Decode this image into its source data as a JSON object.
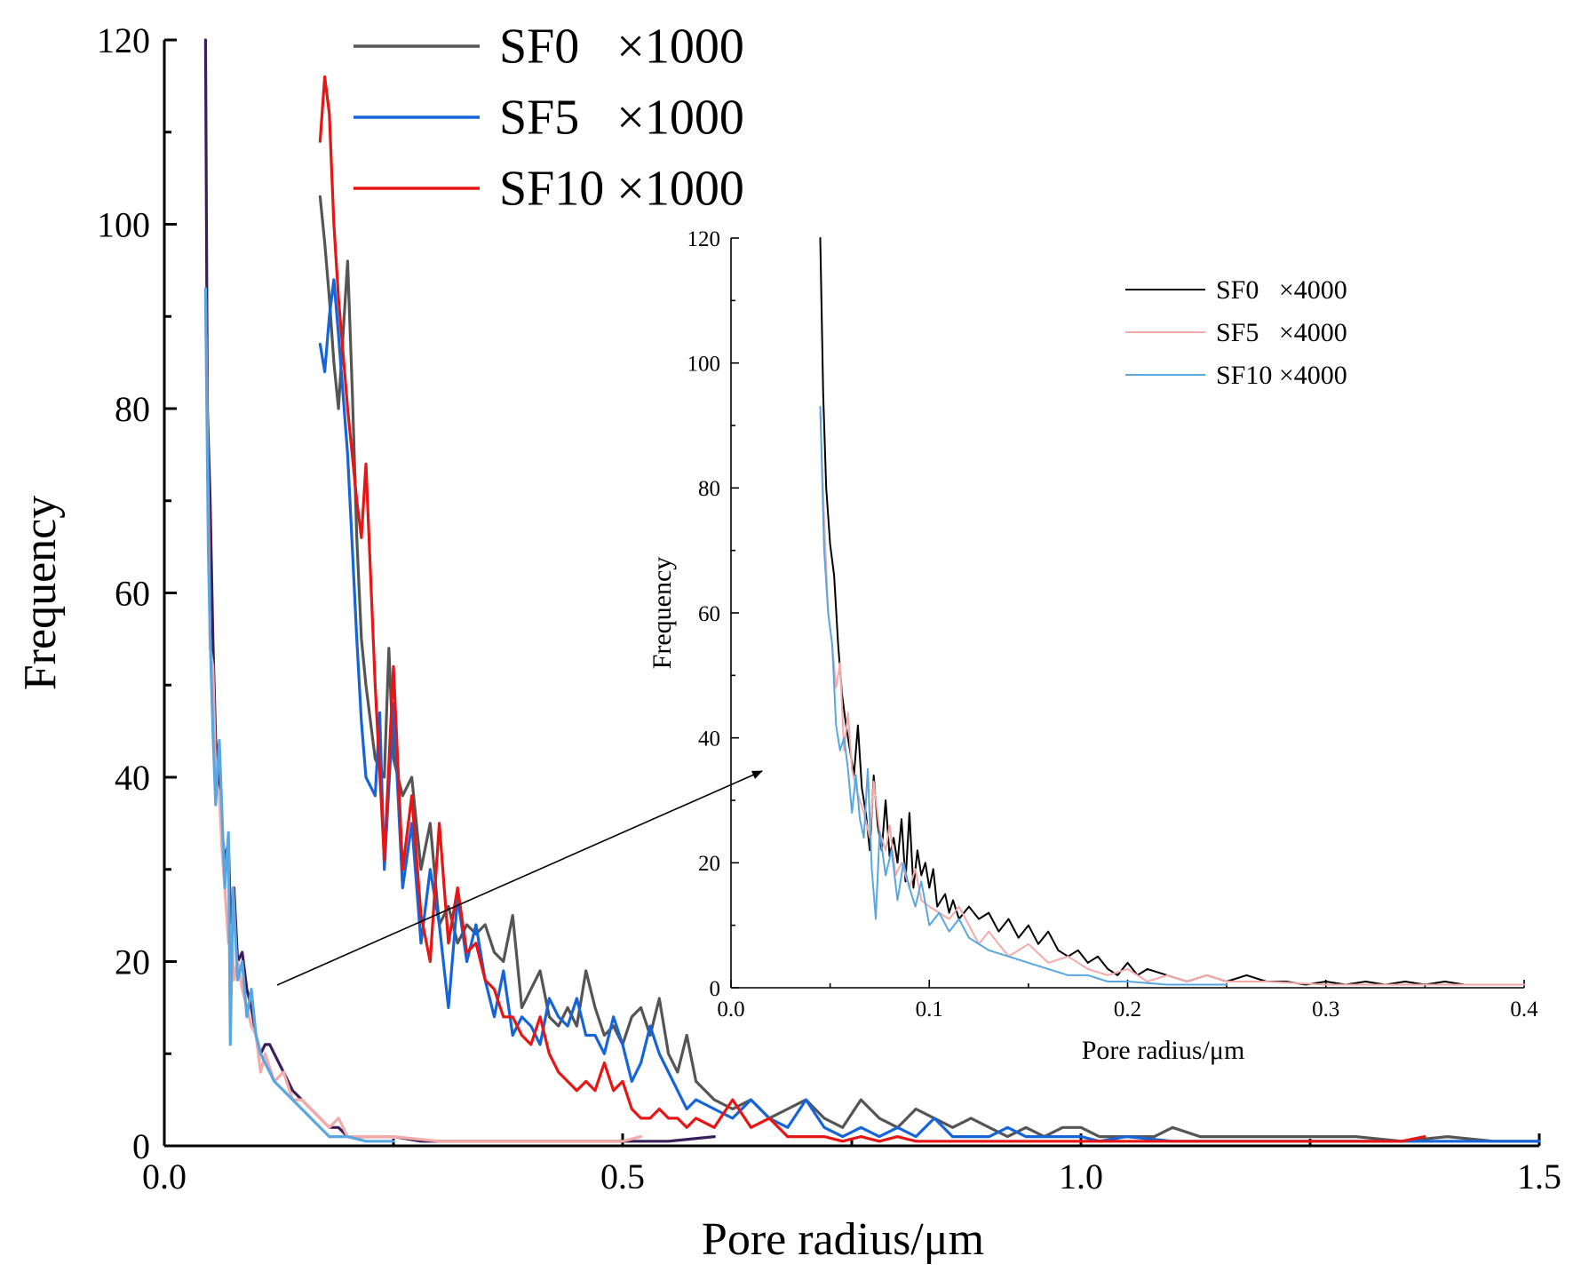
{
  "chart_data": [
    {
      "id": "main",
      "type": "line",
      "xlabel": "Pore radius/μm",
      "ylabel": "Frequency",
      "xlim": [
        0,
        1.5
      ],
      "ylim": [
        0,
        120
      ],
      "xticks": [
        "0.0",
        "0.5",
        "1.0",
        "1.5"
      ],
      "yticks": [
        "0",
        "20",
        "40",
        "60",
        "80",
        "100",
        "120"
      ],
      "legend_position": "top-center",
      "series": [
        {
          "name": "SF0   ×1000",
          "color": "#555555",
          "x": [
            0.17,
            0.175,
            0.18,
            0.185,
            0.19,
            0.195,
            0.2,
            0.205,
            0.21,
            0.215,
            0.22,
            0.23,
            0.24,
            0.245,
            0.25,
            0.26,
            0.27,
            0.28,
            0.29,
            0.3,
            0.31,
            0.32,
            0.33,
            0.34,
            0.35,
            0.36,
            0.37,
            0.38,
            0.39,
            0.4,
            0.41,
            0.42,
            0.43,
            0.44,
            0.45,
            0.46,
            0.47,
            0.48,
            0.49,
            0.5,
            0.51,
            0.52,
            0.53,
            0.54,
            0.55,
            0.56,
            0.57,
            0.58,
            0.6,
            0.62,
            0.64,
            0.66,
            0.68,
            0.7,
            0.72,
            0.74,
            0.76,
            0.78,
            0.8,
            0.82,
            0.84,
            0.86,
            0.88,
            0.9,
            0.92,
            0.94,
            0.96,
            0.98,
            1.0,
            1.02,
            1.05,
            1.08,
            1.1,
            1.13,
            1.16,
            1.2,
            1.25,
            1.3,
            1.35,
            1.4,
            1.45,
            1.5
          ],
          "y": [
            103,
            98,
            92,
            85,
            80,
            88,
            96,
            82,
            66,
            55,
            50,
            42,
            40,
            54,
            42,
            38,
            40,
            30,
            35,
            24,
            26,
            22,
            24,
            23,
            24,
            21,
            20,
            25,
            15,
            17,
            19,
            14,
            13,
            15,
            13,
            19,
            15,
            12,
            13,
            11,
            14,
            15,
            12,
            16,
            10,
            8,
            12,
            7,
            5,
            4,
            5,
            3,
            4,
            5,
            3,
            2,
            5,
            3,
            2,
            4,
            3,
            2,
            3,
            2,
            1,
            2,
            1,
            2,
            2,
            1,
            1,
            1,
            2,
            1,
            1,
            1,
            1,
            1,
            0.5,
            1,
            0.5,
            0.5
          ]
        },
        {
          "name": "SF5   ×1000",
          "color": "#1565d8",
          "x": [
            0.17,
            0.175,
            0.18,
            0.185,
            0.19,
            0.2,
            0.205,
            0.21,
            0.215,
            0.22,
            0.23,
            0.235,
            0.24,
            0.25,
            0.26,
            0.27,
            0.28,
            0.29,
            0.3,
            0.31,
            0.32,
            0.33,
            0.34,
            0.35,
            0.36,
            0.37,
            0.38,
            0.39,
            0.4,
            0.41,
            0.42,
            0.43,
            0.44,
            0.45,
            0.46,
            0.47,
            0.48,
            0.49,
            0.5,
            0.51,
            0.52,
            0.53,
            0.54,
            0.55,
            0.56,
            0.57,
            0.58,
            0.6,
            0.62,
            0.64,
            0.66,
            0.68,
            0.7,
            0.72,
            0.74,
            0.76,
            0.78,
            0.8,
            0.82,
            0.84,
            0.86,
            0.88,
            0.9,
            0.92,
            0.94,
            0.96,
            0.98,
            1.0,
            1.02,
            1.05,
            1.1,
            1.15,
            1.2,
            1.25,
            1.3,
            1.35,
            1.4,
            1.45,
            1.5
          ],
          "y": [
            87,
            84,
            90,
            94,
            88,
            75,
            65,
            55,
            46,
            40,
            38,
            47,
            30,
            48,
            28,
            35,
            22,
            30,
            24,
            15,
            27,
            20,
            24,
            18,
            14,
            19,
            12,
            14,
            13,
            11,
            16,
            14,
            13,
            16,
            12,
            12,
            10,
            14,
            11,
            7,
            9,
            13,
            10,
            8,
            6,
            4,
            5,
            4,
            3,
            5,
            3,
            2,
            5,
            2,
            1,
            2,
            1,
            2,
            1,
            3,
            1,
            1,
            1,
            2,
            1,
            1,
            1,
            1,
            0.5,
            1,
            0.5,
            0.5,
            0.5,
            0.5,
            0.5,
            0.5,
            0.5,
            0.5,
            0.5
          ]
        },
        {
          "name": "SF10 ×1000",
          "color": "#e81515",
          "x": [
            0.17,
            0.175,
            0.18,
            0.185,
            0.19,
            0.2,
            0.21,
            0.215,
            0.22,
            0.23,
            0.24,
            0.25,
            0.26,
            0.27,
            0.28,
            0.29,
            0.3,
            0.31,
            0.32,
            0.33,
            0.34,
            0.35,
            0.36,
            0.37,
            0.38,
            0.39,
            0.4,
            0.41,
            0.42,
            0.43,
            0.44,
            0.45,
            0.46,
            0.47,
            0.48,
            0.49,
            0.5,
            0.51,
            0.52,
            0.53,
            0.54,
            0.55,
            0.56,
            0.57,
            0.58,
            0.6,
            0.62,
            0.64,
            0.66,
            0.68,
            0.7,
            0.72,
            0.74,
            0.76,
            0.78,
            0.8,
            0.82,
            0.84,
            0.86,
            0.88,
            0.9,
            0.95,
            1.0,
            1.05,
            1.1,
            1.15,
            1.2,
            1.25,
            1.3,
            1.35,
            1.375
          ],
          "y": [
            109,
            116,
            112,
            100,
            92,
            80,
            70,
            66,
            74,
            50,
            31,
            52,
            30,
            38,
            25,
            20,
            35,
            22,
            28,
            21,
            22,
            18,
            17,
            14,
            14,
            12,
            11,
            14,
            10,
            8,
            7,
            6,
            7,
            6,
            9,
            6,
            7,
            4,
            3,
            3,
            4,
            3,
            3,
            2,
            3,
            2,
            5,
            2,
            3,
            1,
            1,
            1,
            0.5,
            1,
            0.5,
            1,
            0.5,
            0.5,
            0.5,
            0.5,
            0.5,
            0.5,
            0.5,
            0.5,
            0.5,
            0.5,
            0.5,
            0.5,
            0.5,
            0.5,
            1
          ]
        },
        {
          "name": "SF0 ×4000",
          "color": "#3a1f5d",
          "legend": false,
          "x": [
            0.045,
            0.047,
            0.05,
            0.053,
            0.056,
            0.06,
            0.063,
            0.066,
            0.07,
            0.073,
            0.076,
            0.08,
            0.085,
            0.09,
            0.095,
            0.1,
            0.105,
            0.11,
            0.115,
            0.12,
            0.13,
            0.14,
            0.15,
            0.16,
            0.17,
            0.18,
            0.19,
            0.2,
            0.22,
            0.25,
            0.28,
            0.3,
            0.35,
            0.4,
            0.45,
            0.5,
            0.55,
            0.6
          ],
          "y": [
            120,
            80,
            70,
            55,
            44,
            40,
            34,
            31,
            33,
            22,
            28,
            20,
            21,
            17,
            15,
            12,
            10,
            11,
            11,
            10,
            8,
            6,
            5,
            4,
            3,
            2,
            2,
            1,
            1,
            1,
            0.5,
            0.5,
            0.5,
            0.5,
            0.5,
            0.5,
            0.5,
            1
          ]
        },
        {
          "name": "SF5 ×4000",
          "color": "#f4aaa8",
          "legend": false,
          "x": [
            0.045,
            0.048,
            0.05,
            0.053,
            0.056,
            0.06,
            0.063,
            0.066,
            0.07,
            0.073,
            0.076,
            0.08,
            0.085,
            0.09,
            0.095,
            0.1,
            0.105,
            0.11,
            0.12,
            0.13,
            0.14,
            0.15,
            0.16,
            0.17,
            0.18,
            0.19,
            0.2,
            0.22,
            0.25,
            0.3,
            0.35,
            0.4,
            0.45,
            0.5,
            0.52
          ],
          "y": [
            92,
            70,
            54,
            52,
            40,
            38,
            32,
            28,
            22,
            24,
            18,
            20,
            17,
            15,
            13,
            12,
            8,
            10,
            7,
            8,
            5,
            5,
            4,
            3,
            2,
            3,
            1,
            1,
            1,
            0.5,
            0.5,
            0.5,
            0.5,
            0.5,
            1
          ]
        },
        {
          "name": "SF10 ×4000",
          "color": "#5aa6e0",
          "legend": false,
          "x": [
            0.045,
            0.048,
            0.05,
            0.053,
            0.056,
            0.06,
            0.063,
            0.066,
            0.07,
            0.072,
            0.075,
            0.08,
            0.085,
            0.09,
            0.095,
            0.1,
            0.105,
            0.11,
            0.12,
            0.13,
            0.14,
            0.15,
            0.16,
            0.17,
            0.18,
            0.19,
            0.2,
            0.22,
            0.25
          ],
          "y": [
            93,
            65,
            55,
            45,
            37,
            44,
            36,
            28,
            34,
            11,
            28,
            18,
            20,
            14,
            17,
            12,
            10,
            9,
            7,
            6,
            5,
            4,
            3,
            2,
            1,
            1,
            1,
            0.5,
            0.5
          ]
        }
      ]
    },
    {
      "id": "inset",
      "type": "line",
      "xlabel": "Pore radius/μm",
      "ylabel": "Frequency",
      "xlim": [
        0,
        0.4
      ],
      "ylim": [
        0,
        120
      ],
      "xticks": [
        "0.0",
        "0.1",
        "0.2",
        "0.3",
        "0.4"
      ],
      "yticks": [
        "0",
        "20",
        "40",
        "60",
        "80",
        "100",
        "120"
      ],
      "legend_position": "top-right",
      "series": [
        {
          "name": "SF0   ×4000",
          "color": "#000000",
          "x": [
            0.045,
            0.0465,
            0.048,
            0.05,
            0.052,
            0.054,
            0.056,
            0.058,
            0.06,
            0.062,
            0.064,
            0.066,
            0.068,
            0.07,
            0.072,
            0.074,
            0.076,
            0.078,
            0.08,
            0.082,
            0.084,
            0.086,
            0.088,
            0.09,
            0.092,
            0.094,
            0.096,
            0.098,
            0.1,
            0.102,
            0.104,
            0.106,
            0.108,
            0.11,
            0.112,
            0.115,
            0.12,
            0.125,
            0.13,
            0.135,
            0.14,
            0.145,
            0.15,
            0.155,
            0.16,
            0.165,
            0.17,
            0.175,
            0.18,
            0.185,
            0.19,
            0.195,
            0.2,
            0.205,
            0.21,
            0.22,
            0.23,
            0.24,
            0.25,
            0.26,
            0.27,
            0.28,
            0.29,
            0.3,
            0.31,
            0.32,
            0.33,
            0.34,
            0.35,
            0.36,
            0.37,
            0.38,
            0.39,
            0.4
          ],
          "y": [
            120,
            95,
            80,
            71,
            66,
            55,
            47,
            42,
            38,
            34,
            42,
            32,
            28,
            22,
            34,
            26,
            22,
            30,
            21,
            24,
            20,
            27,
            17,
            28,
            16,
            22,
            18,
            20,
            16,
            19,
            13,
            14,
            15,
            12,
            14,
            11,
            13,
            11,
            12,
            9,
            11,
            8,
            10,
            7,
            9,
            6,
            5,
            6,
            4,
            5,
            3,
            2,
            4,
            2,
            3,
            2,
            1,
            2,
            1,
            2,
            1,
            1,
            0.5,
            1,
            0.5,
            1,
            0.5,
            1,
            0.5,
            1,
            0.5,
            0.5,
            0.5,
            0.5
          ]
        },
        {
          "name": "SF5   ×4000",
          "color": "#f4aaa8",
          "x": [
            0.045,
            0.047,
            0.049,
            0.051,
            0.053,
            0.055,
            0.057,
            0.059,
            0.061,
            0.063,
            0.065,
            0.067,
            0.07,
            0.072,
            0.075,
            0.078,
            0.08,
            0.083,
            0.086,
            0.09,
            0.093,
            0.096,
            0.1,
            0.105,
            0.11,
            0.115,
            0.12,
            0.125,
            0.13,
            0.14,
            0.15,
            0.16,
            0.17,
            0.18,
            0.19,
            0.2,
            0.21,
            0.22,
            0.23,
            0.24,
            0.25,
            0.27,
            0.3,
            0.35,
            0.4
          ],
          "y": [
            92,
            75,
            60,
            55,
            48,
            52,
            38,
            44,
            35,
            32,
            30,
            28,
            24,
            33,
            25,
            22,
            26,
            18,
            20,
            16,
            19,
            14,
            13,
            12,
            11,
            13,
            10,
            7,
            9,
            5,
            7,
            4,
            5,
            3,
            2,
            3,
            1,
            2,
            1,
            2,
            1,
            1,
            0.5,
            0.5,
            0.5
          ]
        },
        {
          "name": "SF10 ×4000",
          "color": "#5aa6e0",
          "x": [
            0.045,
            0.047,
            0.049,
            0.051,
            0.053,
            0.055,
            0.057,
            0.059,
            0.061,
            0.063,
            0.065,
            0.067,
            0.069,
            0.071,
            0.073,
            0.075,
            0.078,
            0.081,
            0.084,
            0.087,
            0.09,
            0.093,
            0.096,
            0.1,
            0.105,
            0.11,
            0.115,
            0.12,
            0.125,
            0.13,
            0.14,
            0.15,
            0.16,
            0.17,
            0.18,
            0.19,
            0.2,
            0.22,
            0.25
          ],
          "y": [
            93,
            70,
            60,
            55,
            42,
            38,
            40,
            35,
            28,
            34,
            27,
            24,
            35,
            19,
            11,
            25,
            18,
            22,
            14,
            20,
            16,
            13,
            17,
            10,
            12,
            9,
            11,
            8,
            7,
            6,
            5,
            4,
            3,
            2,
            2,
            1,
            1,
            0.5,
            0.5
          ]
        }
      ]
    }
  ]
}
